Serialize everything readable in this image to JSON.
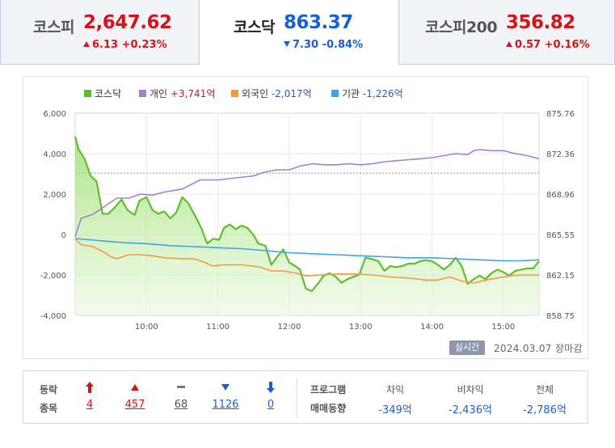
{
  "tabs": [
    {
      "name": "코스피",
      "value": "2,647.62",
      "change": "6.13 +0.23%",
      "direction": "up"
    },
    {
      "name": "코스닥",
      "value": "863.37",
      "change": "7.30 -0.84%",
      "direction": "down"
    },
    {
      "name": "코스피200",
      "value": "356.82",
      "change": "0.57 +0.16%",
      "direction": "up"
    }
  ],
  "chart_data": {
    "type": "line",
    "legend": [
      {
        "name": "코스닥",
        "amount": "",
        "color": "#5fbe2b"
      },
      {
        "name": "개인",
        "amount": "+3,741억",
        "color": "#a57ed4"
      },
      {
        "name": "외국인",
        "amount": "-2,017억",
        "color": "#f39a3c"
      },
      {
        "name": "기관",
        "amount": "-1,226억",
        "color": "#3fa3ea"
      }
    ],
    "x_ticks": [
      "10:00",
      "11:00",
      "12:00",
      "13:00",
      "14:00",
      "15:00"
    ],
    "y_left_ticks": [
      "6,000",
      "4,000",
      "2,000",
      "0",
      "-2,000",
      "-4,000"
    ],
    "y_left_range": [
      -4000,
      6000
    ],
    "y_right_ticks": [
      "875.76",
      "872.36",
      "868.96",
      "865.55",
      "862.15",
      "858.75"
    ],
    "y_right_range": [
      858.75,
      875.76
    ],
    "x_range_minutes": [
      540,
      930
    ],
    "reference_level": 870.72,
    "series": [
      {
        "name": "코스닥",
        "color": "#5fbe2b",
        "axis": "right",
        "points": [
          [
            540,
            873.8
          ],
          [
            543,
            872.7
          ],
          [
            548,
            871.9
          ],
          [
            553,
            870.5
          ],
          [
            558,
            870.0
          ],
          [
            563,
            867.3
          ],
          [
            568,
            867.3
          ],
          [
            573,
            867.8
          ],
          [
            579,
            868.5
          ],
          [
            584,
            867.6
          ],
          [
            590,
            867.2
          ],
          [
            594,
            868.4
          ],
          [
            600,
            868.7
          ],
          [
            605,
            867.6
          ],
          [
            610,
            867.3
          ],
          [
            615,
            867.5
          ],
          [
            620,
            866.9
          ],
          [
            625,
            867.4
          ],
          [
            630,
            868.7
          ],
          [
            635,
            868.2
          ],
          [
            641,
            867.1
          ],
          [
            646,
            866.1
          ],
          [
            651,
            864.8
          ],
          [
            656,
            865.2
          ],
          [
            661,
            865.1
          ],
          [
            665,
            866.1
          ],
          [
            670,
            866.4
          ],
          [
            675,
            866.0
          ],
          [
            680,
            866.3
          ],
          [
            685,
            866.1
          ],
          [
            690,
            865.5
          ],
          [
            694,
            864.8
          ],
          [
            700,
            864.6
          ],
          [
            705,
            863.0
          ],
          [
            710,
            863.7
          ],
          [
            715,
            864.3
          ],
          [
            720,
            863.2
          ],
          [
            725,
            862.9
          ],
          [
            729,
            862.6
          ],
          [
            734,
            861.0
          ],
          [
            739,
            860.8
          ],
          [
            744,
            861.4
          ],
          [
            749,
            862.1
          ],
          [
            754,
            862.3
          ],
          [
            759,
            862.0
          ],
          [
            764,
            861.5
          ],
          [
            769,
            861.8
          ],
          [
            774,
            862.0
          ],
          [
            779,
            862.2
          ],
          [
            784,
            863.6
          ],
          [
            789,
            863.5
          ],
          [
            795,
            863.3
          ],
          [
            800,
            862.5
          ],
          [
            805,
            862.9
          ],
          [
            810,
            862.8
          ],
          [
            815,
            862.9
          ],
          [
            820,
            863.1
          ],
          [
            825,
            863.1
          ],
          [
            830,
            863.3
          ],
          [
            835,
            863.4
          ],
          [
            840,
            863.3
          ],
          [
            845,
            863.0
          ],
          [
            850,
            862.6
          ],
          [
            855,
            863.0
          ],
          [
            860,
            863.6
          ],
          [
            865,
            862.9
          ],
          [
            870,
            861.4
          ],
          [
            875,
            861.8
          ],
          [
            880,
            862.1
          ],
          [
            885,
            861.8
          ],
          [
            890,
            862.3
          ],
          [
            895,
            862.6
          ],
          [
            900,
            862.4
          ],
          [
            905,
            862.1
          ],
          [
            910,
            862.5
          ],
          [
            915,
            862.6
          ],
          [
            920,
            862.7
          ],
          [
            925,
            862.7
          ],
          [
            930,
            863.3
          ]
        ]
      },
      {
        "name": "개인",
        "color": "#a57ed4",
        "axis": "left",
        "points": [
          [
            540,
            -100
          ],
          [
            545,
            800
          ],
          [
            555,
            1000
          ],
          [
            565,
            1400
          ],
          [
            575,
            1800
          ],
          [
            585,
            1800
          ],
          [
            595,
            2000
          ],
          [
            605,
            1950
          ],
          [
            615,
            2100
          ],
          [
            630,
            2250
          ],
          [
            645,
            2700
          ],
          [
            660,
            2700
          ],
          [
            675,
            2800
          ],
          [
            690,
            2900
          ],
          [
            700,
            3100
          ],
          [
            710,
            3200
          ],
          [
            720,
            3200
          ],
          [
            730,
            3400
          ],
          [
            740,
            3500
          ],
          [
            750,
            3450
          ],
          [
            760,
            3450
          ],
          [
            770,
            3500
          ],
          [
            780,
            3450
          ],
          [
            790,
            3500
          ],
          [
            800,
            3600
          ],
          [
            810,
            3650
          ],
          [
            820,
            3700
          ],
          [
            830,
            3750
          ],
          [
            840,
            3800
          ],
          [
            850,
            3900
          ],
          [
            860,
            4000
          ],
          [
            870,
            3950
          ],
          [
            875,
            4150
          ],
          [
            880,
            4200
          ],
          [
            890,
            4150
          ],
          [
            900,
            4150
          ],
          [
            910,
            4000
          ],
          [
            920,
            3900
          ],
          [
            930,
            3750
          ]
        ]
      },
      {
        "name": "외국인",
        "color": "#f39a3c",
        "axis": "left",
        "points": [
          [
            540,
            -200
          ],
          [
            545,
            -500
          ],
          [
            555,
            -600
          ],
          [
            565,
            -900
          ],
          [
            570,
            -1100
          ],
          [
            575,
            -1200
          ],
          [
            585,
            -1000
          ],
          [
            595,
            -1000
          ],
          [
            605,
            -1050
          ],
          [
            615,
            -1150
          ],
          [
            630,
            -1200
          ],
          [
            640,
            -1200
          ],
          [
            650,
            -1400
          ],
          [
            655,
            -1550
          ],
          [
            665,
            -1500
          ],
          [
            680,
            -1500
          ],
          [
            695,
            -1600
          ],
          [
            705,
            -1800
          ],
          [
            715,
            -1800
          ],
          [
            725,
            -1900
          ],
          [
            735,
            -2050
          ],
          [
            745,
            -2000
          ],
          [
            760,
            -1950
          ],
          [
            775,
            -1950
          ],
          [
            790,
            -2000
          ],
          [
            805,
            -2100
          ],
          [
            820,
            -2150
          ],
          [
            835,
            -2250
          ],
          [
            845,
            -2250
          ],
          [
            855,
            -2100
          ],
          [
            865,
            -2300
          ],
          [
            875,
            -2400
          ],
          [
            885,
            -2250
          ],
          [
            895,
            -2150
          ],
          [
            905,
            -2050
          ],
          [
            915,
            -2000
          ],
          [
            930,
            -2000
          ]
        ]
      },
      {
        "name": "기관",
        "color": "#3fa3ea",
        "axis": "left",
        "points": [
          [
            540,
            -200
          ],
          [
            560,
            -300
          ],
          [
            580,
            -400
          ],
          [
            600,
            -450
          ],
          [
            620,
            -550
          ],
          [
            640,
            -600
          ],
          [
            660,
            -650
          ],
          [
            680,
            -700
          ],
          [
            700,
            -800
          ],
          [
            720,
            -900
          ],
          [
            740,
            -950
          ],
          [
            760,
            -1000
          ],
          [
            780,
            -1050
          ],
          [
            800,
            -1100
          ],
          [
            820,
            -1150
          ],
          [
            840,
            -1150
          ],
          [
            860,
            -1200
          ],
          [
            880,
            -1250
          ],
          [
            900,
            -1300
          ],
          [
            915,
            -1300
          ],
          [
            930,
            -1250
          ]
        ]
      }
    ]
  },
  "realtime_label": "실시간",
  "date_label": "2024.03.07 장마감",
  "breadth": {
    "label_line1": "등락",
    "label_line2": "종목",
    "items": [
      {
        "symbol": "🠕",
        "value": "4",
        "color": "#d8121a",
        "kind": "upper-limit"
      },
      {
        "symbol": "▲",
        "value": "457",
        "color": "#d8121a",
        "kind": "rise"
      },
      {
        "symbol": "━",
        "value": "68",
        "color": "#777777",
        "kind": "flat"
      },
      {
        "symbol": "▼",
        "value": "1126",
        "color": "#1a5fd0",
        "kind": "fall"
      },
      {
        "symbol": "🠗",
        "value": "0",
        "color": "#1a5fd0",
        "kind": "lower-limit"
      }
    ]
  },
  "program": {
    "label_line1": "프로그램",
    "label_line2": "매매동향",
    "cols": [
      {
        "head": "차익",
        "value": "-349억"
      },
      {
        "head": "비차익",
        "value": "-2,436억"
      },
      {
        "head": "전체",
        "value": "-2,786억"
      }
    ]
  }
}
